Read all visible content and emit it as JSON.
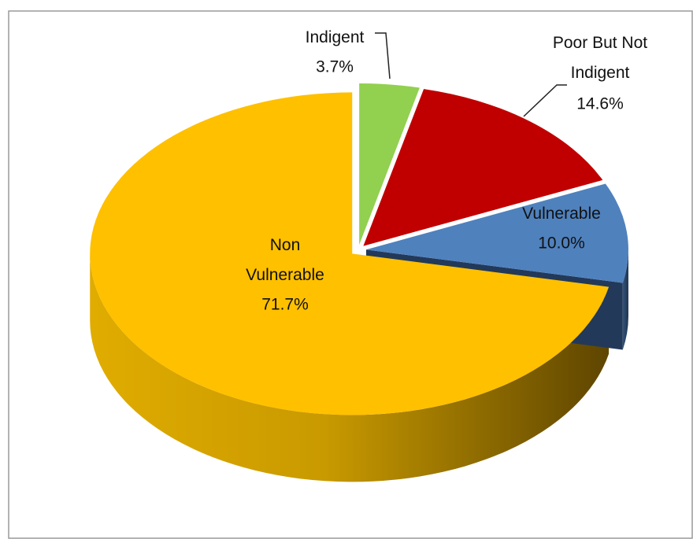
{
  "chart_data": {
    "type": "pie",
    "categories": [
      "Indigent",
      "Poor But Not Indigent",
      "Vulnerable",
      "Non Vulnerable"
    ],
    "values": [
      3.7,
      14.6,
      10.0,
      71.7
    ],
    "value_labels": [
      "3.7%",
      "14.6%",
      "10.0%",
      "71.7%"
    ],
    "colors": [
      "#92d050",
      "#c00000",
      "#4f81bd",
      "#ffc000"
    ]
  }
}
